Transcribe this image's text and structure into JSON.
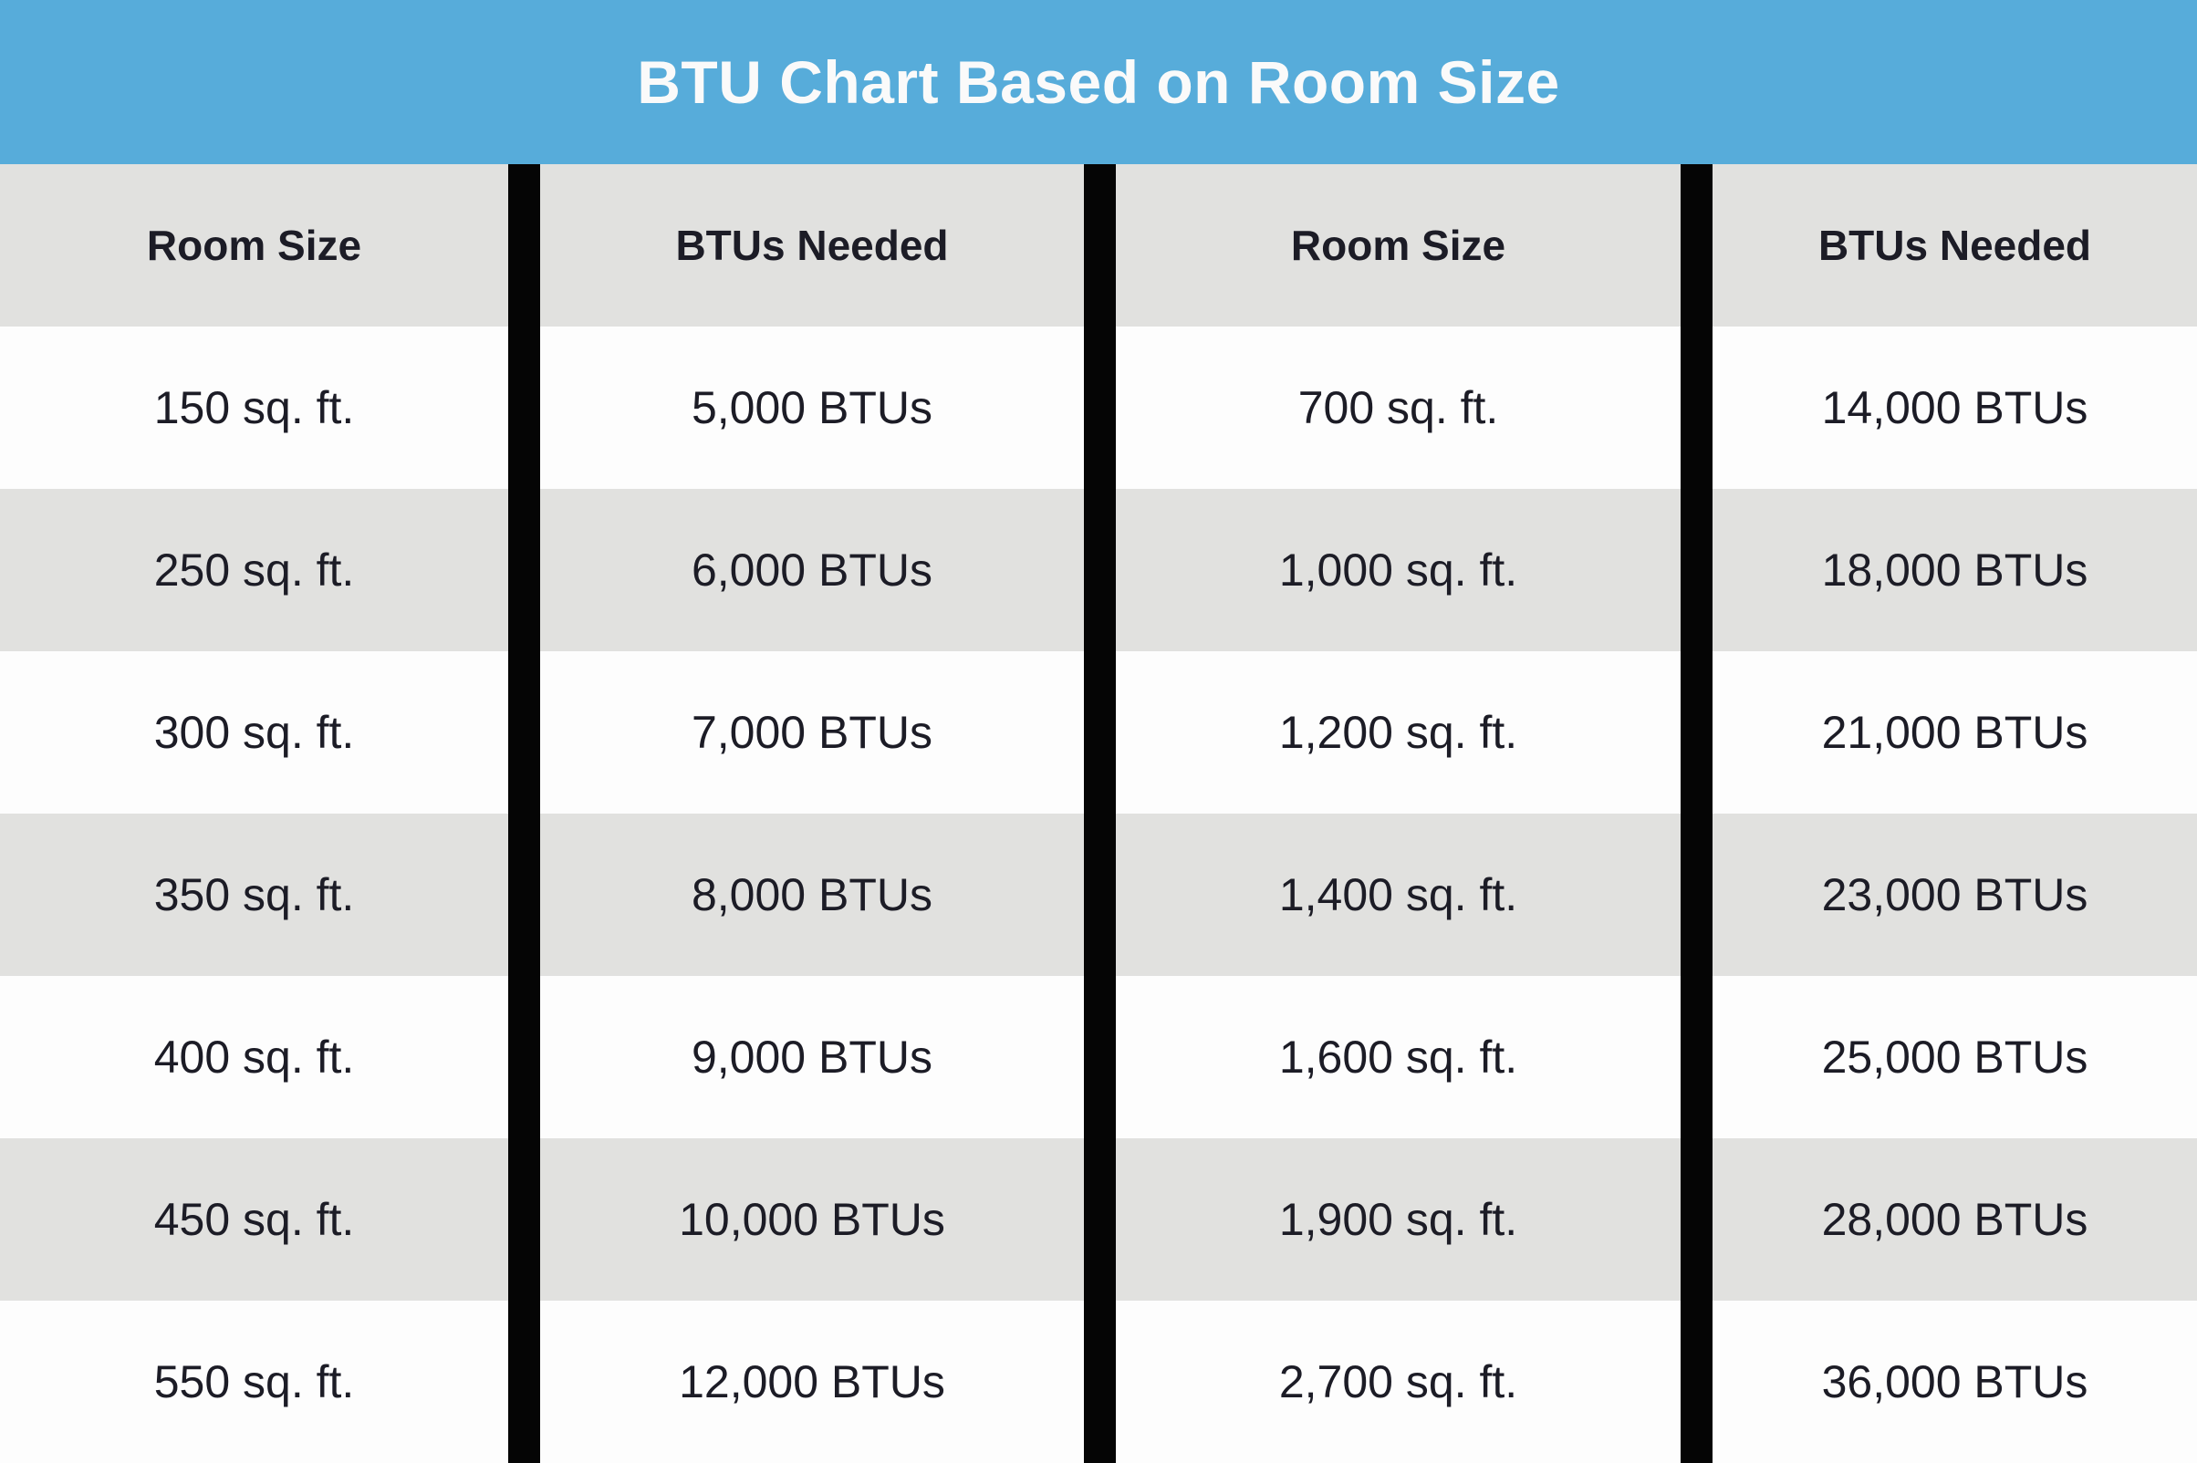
{
  "chart_data": {
    "type": "table",
    "title": "BTU Chart Based on Room Size",
    "columns": [
      "Room Size",
      "BTUs Needed",
      "Room Size",
      "BTUs Needed"
    ],
    "rows": [
      [
        "150 sq. ft.",
        "5,000 BTUs",
        "700 sq. ft.",
        "14,000 BTUs"
      ],
      [
        "250 sq. ft.",
        "6,000 BTUs",
        "1,000 sq. ft.",
        "18,000 BTUs"
      ],
      [
        "300 sq. ft.",
        "7,000 BTUs",
        "1,200 sq. ft.",
        "21,000 BTUs"
      ],
      [
        "350 sq. ft.",
        "8,000 BTUs",
        "1,400 sq. ft.",
        "23,000 BTUs"
      ],
      [
        "400 sq. ft.",
        "9,000 BTUs",
        "1,600 sq. ft.",
        "25,000 BTUs"
      ],
      [
        "450 sq. ft.",
        "10,000 BTUs",
        "1,900 sq. ft.",
        "28,000 BTUs"
      ],
      [
        "550 sq. ft.",
        "12,000 BTUs",
        "2,700 sq. ft.",
        "36,000 BTUs"
      ]
    ],
    "layout": {
      "legend": "none",
      "grid": "off",
      "row_striping": "alternating white and light gray",
      "column_dividers": "black vertical bars"
    }
  },
  "colors": {
    "c-blue": "#57acda",
    "c-gray": "#e1e1df",
    "c-white": "#fdfdfd",
    "c-black": "#050505",
    "c-text": "#1c1c26",
    "c-title": "#fafafa"
  }
}
